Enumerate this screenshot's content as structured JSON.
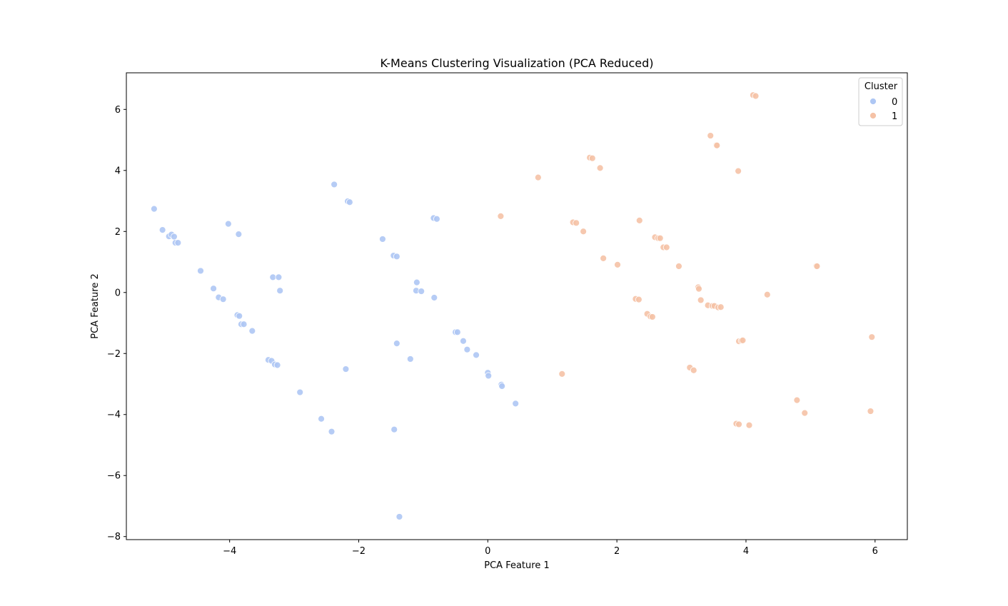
{
  "chart_data": {
    "type": "scatter",
    "title": "K-Means Clustering Visualization (PCA Reduced)",
    "xlabel": "PCA Feature 1",
    "ylabel": "PCA Feature 2",
    "xlim": [
      -5.6,
      6.5
    ],
    "ylim": [
      -8.1,
      7.2
    ],
    "xticks": [
      -4,
      -2,
      0,
      2,
      4,
      6
    ],
    "xtick_labels": [
      "−4",
      "−2",
      "0",
      "2",
      "4",
      "6"
    ],
    "yticks": [
      -8,
      -6,
      -4,
      -2,
      0,
      2,
      4,
      6
    ],
    "ytick_labels": [
      "−8",
      "−6",
      "−4",
      "−2",
      "0",
      "2",
      "4",
      "6"
    ],
    "grid": false,
    "legend": {
      "title": "Cluster",
      "position": "top-right"
    },
    "series": [
      {
        "name": "0",
        "color": "#aec7f4",
        "edge_color": "#ffffff",
        "points": [
          [
            -5.17,
            2.74
          ],
          [
            -5.04,
            2.05
          ],
          [
            -4.94,
            1.84
          ],
          [
            -4.9,
            1.9
          ],
          [
            -4.86,
            1.83
          ],
          [
            -4.84,
            1.63
          ],
          [
            -4.8,
            1.63
          ],
          [
            -4.45,
            0.71
          ],
          [
            -4.25,
            0.13
          ],
          [
            -4.17,
            -0.16
          ],
          [
            -4.1,
            -0.22
          ],
          [
            -4.02,
            2.25
          ],
          [
            -3.88,
            -0.74
          ],
          [
            -3.85,
            -0.77
          ],
          [
            -3.86,
            1.91
          ],
          [
            -3.82,
            -1.04
          ],
          [
            -3.78,
            -1.04
          ],
          [
            -3.65,
            -1.26
          ],
          [
            -3.4,
            -2.21
          ],
          [
            -3.35,
            -2.24
          ],
          [
            -3.33,
            0.5
          ],
          [
            -3.3,
            -2.36
          ],
          [
            -3.26,
            -2.38
          ],
          [
            -3.24,
            0.5
          ],
          [
            -3.22,
            0.06
          ],
          [
            -2.91,
            -3.27
          ],
          [
            -2.58,
            -4.14
          ],
          [
            -2.42,
            -4.56
          ],
          [
            -2.38,
            3.54
          ],
          [
            -2.2,
            -2.51
          ],
          [
            -2.17,
            2.99
          ],
          [
            -2.14,
            2.96
          ],
          [
            -1.63,
            1.75
          ],
          [
            -1.46,
            1.21
          ],
          [
            -1.41,
            1.18
          ],
          [
            -1.45,
            -4.49
          ],
          [
            -1.41,
            -1.67
          ],
          [
            -1.37,
            -7.35
          ],
          [
            -1.2,
            -2.18
          ],
          [
            -1.1,
            0.33
          ],
          [
            -1.11,
            0.06
          ],
          [
            -1.03,
            0.04
          ],
          [
            -0.84,
            2.44
          ],
          [
            -0.79,
            2.41
          ],
          [
            -0.83,
            -0.17
          ],
          [
            -0.5,
            -1.3
          ],
          [
            -0.47,
            -1.3
          ],
          [
            -0.38,
            -1.59
          ],
          [
            -0.32,
            -1.87
          ],
          [
            -0.18,
            -2.05
          ],
          [
            0.0,
            -2.63
          ],
          [
            0.01,
            -2.73
          ],
          [
            0.21,
            -3.02
          ],
          [
            0.22,
            -3.07
          ],
          [
            0.43,
            -3.64
          ]
        ]
      },
      {
        "name": "1",
        "color": "#f5c2a6",
        "edge_color": "#ffffff",
        "points": [
          [
            0.2,
            2.5
          ],
          [
            0.78,
            3.77
          ],
          [
            1.15,
            -2.67
          ],
          [
            1.32,
            2.3
          ],
          [
            1.37,
            2.28
          ],
          [
            1.48,
            2.0
          ],
          [
            1.58,
            4.42
          ],
          [
            1.62,
            4.4
          ],
          [
            1.74,
            4.08
          ],
          [
            1.79,
            1.12
          ],
          [
            2.01,
            0.91
          ],
          [
            2.29,
            -0.21
          ],
          [
            2.34,
            -0.23
          ],
          [
            2.35,
            2.36
          ],
          [
            2.47,
            -0.7
          ],
          [
            2.52,
            -0.79
          ],
          [
            2.55,
            -0.8
          ],
          [
            2.59,
            1.81
          ],
          [
            2.64,
            1.78
          ],
          [
            2.67,
            1.78
          ],
          [
            2.72,
            1.48
          ],
          [
            2.77,
            1.48
          ],
          [
            2.96,
            0.86
          ],
          [
            3.13,
            -2.46
          ],
          [
            3.19,
            -2.55
          ],
          [
            3.26,
            0.17
          ],
          [
            3.27,
            0.12
          ],
          [
            3.3,
            -0.25
          ],
          [
            3.41,
            -0.42
          ],
          [
            3.45,
            5.14
          ],
          [
            3.48,
            -0.44
          ],
          [
            3.51,
            -0.44
          ],
          [
            3.54,
            4.83
          ],
          [
            3.55,
            4.82
          ],
          [
            3.57,
            -0.49
          ],
          [
            3.61,
            -0.48
          ],
          [
            3.85,
            -4.3
          ],
          [
            3.89,
            -4.32
          ],
          [
            3.88,
            3.98
          ],
          [
            3.89,
            -1.6
          ],
          [
            3.93,
            -1.58
          ],
          [
            3.95,
            -1.57
          ],
          [
            4.05,
            -4.35
          ],
          [
            4.11,
            6.47
          ],
          [
            4.15,
            6.44
          ],
          [
            4.33,
            -0.07
          ],
          [
            4.79,
            -3.53
          ],
          [
            4.91,
            -3.95
          ],
          [
            5.09,
            0.87
          ],
          [
            5.1,
            0.86
          ],
          [
            5.93,
            -3.89
          ],
          [
            5.95,
            -1.46
          ]
        ]
      }
    ]
  }
}
